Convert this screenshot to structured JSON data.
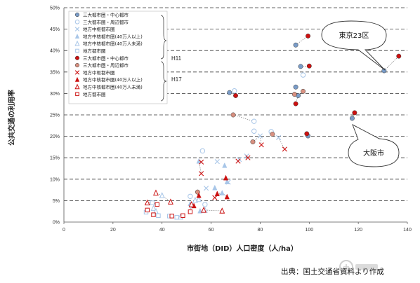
{
  "chart_data": {
    "type": "scatter",
    "xlabel": "市街地（DID）人口密度（人/ha）",
    "ylabel": "公共交通の利用率",
    "xlim": [
      0,
      140
    ],
    "ylim": [
      0,
      50
    ],
    "x_ticks": [
      "0",
      "20",
      "40",
      "60",
      "80",
      "100",
      "120",
      "140"
    ],
    "y_ticks": [
      "0%",
      "5%",
      "10%",
      "15%",
      "20%",
      "25%",
      "30%",
      "35%",
      "40%",
      "45%",
      "50%"
    ],
    "grid": "dashed horizontal",
    "legend_groups": [
      {
        "label": "H11",
        "entries": [
          "三大都市圏・中心都市",
          "三大都市圏・周辺都市",
          "地方中枢都市圏",
          "地方中核都市圏(40万人以上)",
          "地方中核都市圏(40万人未満)",
          "地方都市圏"
        ]
      },
      {
        "label": "H17",
        "entries": [
          "三大都市圏・中心都市",
          "三大都市圏・周辺都市",
          "地方中枢都市圏",
          "地方中核都市圏(40万人以上)",
          "地方中核都市圏(40万人未満)",
          "地方都市圏"
        ]
      }
    ],
    "series": [
      {
        "name": "三大都市圏・中心都市",
        "year": "H11",
        "marker": "circle",
        "color": "#7a9cc8",
        "points": [
          [
            130.5,
            35.3
          ],
          [
            117.5,
            24.2
          ],
          [
            94.5,
            41.3
          ],
          [
            96.5,
            36.3
          ],
          [
            94.5,
            31.5
          ],
          [
            99.5,
            20.1
          ],
          [
            95.5,
            29.5
          ],
          [
            67.5,
            30.2
          ]
        ]
      },
      {
        "name": "三大都市圏・周辺都市",
        "year": "H11",
        "marker": "circle-open",
        "color": "#a8c6e8",
        "points": [
          [
            77.5,
            23.5
          ],
          [
            84.5,
            21.1
          ],
          [
            77.5,
            21.2
          ],
          [
            97.5,
            34.3
          ],
          [
            69.5,
            30.6
          ],
          [
            56.5,
            16.6
          ],
          [
            51.5,
            6.0
          ],
          [
            57.5,
            4.1
          ]
        ]
      },
      {
        "name": "地方中枢都市圏",
        "year": "H11",
        "marker": "x",
        "color": "#a8c6e8",
        "points": [
          [
            80.0,
            20.1
          ],
          [
            87.5,
            19.7
          ],
          [
            74.5,
            15.4
          ],
          [
            62.5,
            14.1
          ],
          [
            71.5,
            14.6
          ],
          [
            67.0,
            9.3
          ],
          [
            58.0,
            7.9
          ]
        ]
      },
      {
        "name": "地方中核都市圏(40万人以上)",
        "year": "H11",
        "marker": "triangle",
        "color": "#a8c6e8",
        "points": [
          [
            65.5,
            13.2
          ],
          [
            66.5,
            9.4
          ],
          [
            64.5,
            6.8
          ],
          [
            51.5,
            4.3
          ],
          [
            55.5,
            2.6
          ],
          [
            55.0,
            14.2
          ],
          [
            61.5,
            8.0
          ]
        ]
      },
      {
        "name": "地方中核都市圏(40万人未満)",
        "year": "H11",
        "marker": "triangle-open",
        "color": "#a8c6e8",
        "points": [
          [
            40.0,
            6.2
          ],
          [
            36.5,
            3.2
          ],
          [
            37.5,
            2.5
          ],
          [
            53.5,
            5.1
          ],
          [
            55.0,
            5.3
          ],
          [
            47.5,
            1.2
          ],
          [
            57.5,
            2.8
          ]
        ]
      },
      {
        "name": "地方都市圏",
        "year": "H11",
        "marker": "square-open",
        "color": "#a8c6e8",
        "points": [
          [
            33.5,
            2.3
          ],
          [
            38.5,
            1.5
          ],
          [
            43.0,
            1.4
          ],
          [
            46.0,
            1.1
          ],
          [
            36.0,
            4.5
          ],
          [
            52.0,
            3.8
          ]
        ]
      },
      {
        "name": "三大都市圏・中心都市",
        "year": "H17",
        "marker": "circle",
        "color": "#cc1111",
        "points": [
          [
            136.5,
            38.7
          ],
          [
            118.5,
            25.5
          ],
          [
            99.5,
            43.4
          ],
          [
            100.0,
            36.4
          ],
          [
            94.5,
            27.6
          ],
          [
            99.0,
            20.6
          ],
          [
            70.0,
            29.5
          ]
        ]
      },
      {
        "name": "三大都市圏・周辺都市",
        "year": "H17",
        "marker": "circle",
        "color": "#d89080",
        "points": [
          [
            77.0,
            18.7
          ],
          [
            85.0,
            20.5
          ],
          [
            97.5,
            30.5
          ],
          [
            94.0,
            29.8
          ],
          [
            69.0,
            25.0
          ],
          [
            54.5,
            7.0
          ]
        ]
      },
      {
        "name": "地方中枢都市圏",
        "year": "H17",
        "marker": "x",
        "color": "#cc1111",
        "points": [
          [
            90.0,
            17.0
          ],
          [
            80.5,
            18.0
          ],
          [
            75.0,
            15.0
          ],
          [
            56.0,
            11.3
          ],
          [
            71.0,
            14.2
          ],
          [
            61.5,
            5.7
          ],
          [
            56.0,
            14.0
          ]
        ]
      },
      {
        "name": "地方中核都市圏(40万人以上)",
        "year": "H17",
        "marker": "triangle",
        "color": "#cc1111",
        "points": [
          [
            66.0,
            10.3
          ],
          [
            62.5,
            6.6
          ],
          [
            66.5,
            5.9
          ],
          [
            55.0,
            6.2
          ],
          [
            53.0,
            3.8
          ]
        ]
      },
      {
        "name": "地方中核都市圏(40万人未満)",
        "year": "H17",
        "marker": "triangle-open",
        "color": "#cc1111",
        "points": [
          [
            37.5,
            6.8
          ],
          [
            34.0,
            4.5
          ],
          [
            43.5,
            4.7
          ],
          [
            52.0,
            4.1
          ],
          [
            57.0,
            2.8
          ],
          [
            64.5,
            2.6
          ]
        ]
      },
      {
        "name": "地方都市圏",
        "year": "H17",
        "marker": "square-open",
        "color": "#cc1111",
        "points": [
          [
            34.0,
            2.8
          ],
          [
            38.0,
            4.1
          ],
          [
            44.0,
            1.4
          ],
          [
            48.5,
            1.5
          ],
          [
            36.5,
            1.7
          ],
          [
            51.5,
            2.4
          ]
        ]
      }
    ],
    "annotations": [
      {
        "text": "東京23区",
        "target": [
          130.5,
          35.3
        ]
      },
      {
        "text": "大阪市",
        "target": [
          117.5,
          24.2
        ]
      }
    ],
    "colors": {
      "h11": "#7a9cc8",
      "h11_light": "#a8c6e8",
      "h17": "#cc1111",
      "h17_light": "#d89080"
    }
  },
  "source_note": "出典：国土交通省資料より作成",
  "watermark_text": "Response"
}
